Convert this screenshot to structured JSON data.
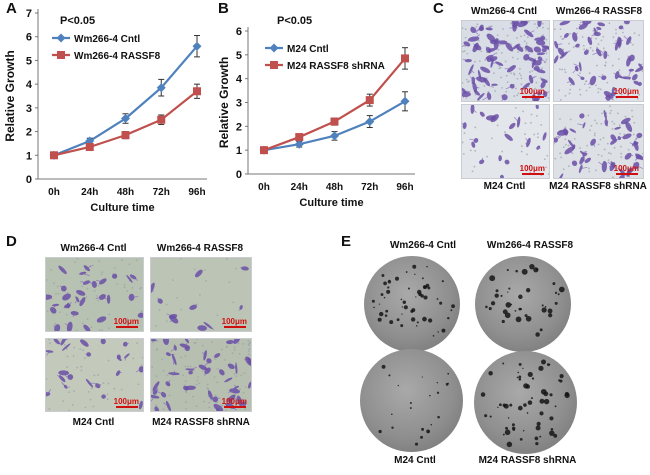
{
  "panel_labels": {
    "a": "A",
    "b": "B",
    "c": "C",
    "d": "D",
    "e": "E"
  },
  "scale_bar": "100μm",
  "chart_data": [
    {
      "type": "line",
      "panel": "A",
      "annotation": "P<0.05",
      "categories": [
        "0h",
        "24h",
        "48h",
        "72h",
        "96h"
      ],
      "xlabel": "Culture time",
      "ylabel": "Relative Growth",
      "ylim": [
        0,
        7
      ],
      "yticks": [
        0,
        1,
        2,
        3,
        4,
        5,
        6,
        7
      ],
      "series": [
        {
          "name": "Wm266-4 Cntl",
          "color": "#4f81bd",
          "marker": "diamond",
          "values": [
            1.0,
            1.6,
            2.55,
            3.85,
            5.6
          ],
          "errors": [
            0.05,
            0.12,
            0.2,
            0.35,
            0.45
          ]
        },
        {
          "name": "Wm266-4  RASSF8",
          "color": "#c0504d",
          "marker": "square",
          "values": [
            1.0,
            1.35,
            1.85,
            2.5,
            3.7
          ],
          "errors": [
            0.05,
            0.1,
            0.15,
            0.2,
            0.3
          ]
        }
      ]
    },
    {
      "type": "line",
      "panel": "B",
      "annotation": "P<0.05",
      "categories": [
        "0h",
        "24h",
        "48h",
        "72h",
        "96h"
      ],
      "xlabel": "Culture time",
      "ylabel": "Relative Growth",
      "ylim": [
        0,
        6
      ],
      "yticks": [
        0,
        1,
        2,
        3,
        4,
        5,
        6
      ],
      "series": [
        {
          "name": "M24 Cntl",
          "color": "#4f81bd",
          "marker": "diamond",
          "values": [
            1.0,
            1.25,
            1.6,
            2.2,
            3.05
          ],
          "errors": [
            0.05,
            0.12,
            0.18,
            0.25,
            0.4
          ]
        },
        {
          "name": "M24 RASSF8 shRNA",
          "color": "#c0504d",
          "marker": "square",
          "values": [
            1.0,
            1.55,
            2.2,
            3.1,
            4.85
          ],
          "errors": [
            0.05,
            0.1,
            0.15,
            0.25,
            0.45
          ]
        }
      ]
    }
  ],
  "panel_c": {
    "labels": [
      "Wm266-4 Cntl",
      "Wm266-4 RASSF8",
      "M24 Cntl",
      "M24 RASSF8 shRNA"
    ]
  },
  "panel_d": {
    "labels": [
      "Wm266-4 Cntl",
      "Wm266-4  RASSF8",
      "M24 Cntl",
      "M24 RASSF8 shRNA"
    ]
  },
  "panel_e": {
    "labels": [
      "Wm266-4 Cntl",
      "Wm266-4  RASSF8",
      "M24 Cntl",
      "M24 RASSF8 shRNA"
    ]
  }
}
